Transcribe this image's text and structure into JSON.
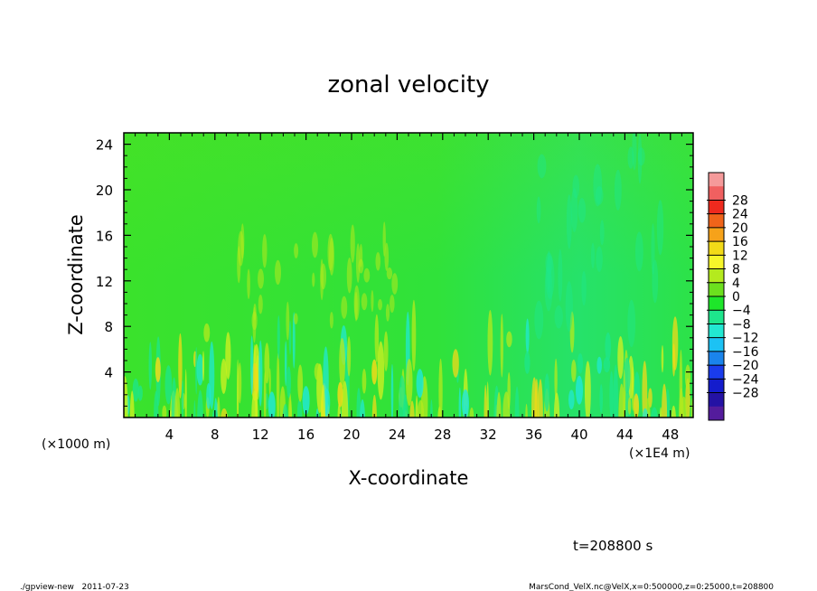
{
  "chart_data": {
    "type": "heatmap",
    "title": "zonal velocity",
    "xlabel": "X-coordinate",
    "ylabel": "Z-coordinate",
    "x_unit_left": "(×1000 m)",
    "x_unit_right": "(×1E4 m)",
    "xlim": [
      0,
      50
    ],
    "ylim": [
      0,
      25
    ],
    "xticks": [
      4,
      8,
      12,
      16,
      20,
      24,
      28,
      32,
      36,
      40,
      44,
      48
    ],
    "yticks": [
      4,
      8,
      12,
      16,
      20,
      24
    ],
    "colorbar": {
      "levels": [
        28,
        24,
        20,
        16,
        12,
        8,
        4,
        0,
        -4,
        -8,
        -12,
        -16,
        -20,
        -24,
        -28
      ],
      "colors": [
        "#f59a9a",
        "#f06060",
        "#ee2a1e",
        "#f0641a",
        "#f6a21a",
        "#f2da18",
        "#f6f62a",
        "#b4ea1e",
        "#6ce01e",
        "#1ee62a",
        "#1ee68c",
        "#22e8d2",
        "#1cc2f4",
        "#1a84ec",
        "#1a3cec",
        "#141ccc",
        "#2412a4",
        "#541c9c"
      ]
    },
    "time_label": "t=208800 s"
  },
  "footer": {
    "left": "./gpview-new   2011-07-23",
    "right": "MarsCond_VelX.nc@VelX,x=0:500000,z=0:25000,t=208800"
  }
}
